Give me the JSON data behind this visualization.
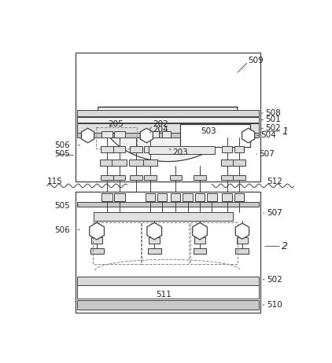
{
  "bg_color": "#ffffff",
  "line_color": "#404040",
  "dashed_color": "#888888",
  "fig_width": 4.22,
  "fig_height": 4.62,
  "dpi": 100
}
